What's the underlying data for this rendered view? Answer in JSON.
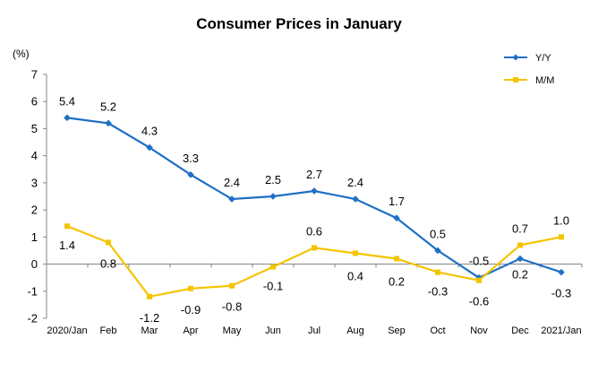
{
  "chart_data": {
    "type": "line",
    "title": "Consumer Prices in January",
    "ylabel": "(%)",
    "ylim": [
      -2,
      7
    ],
    "yticks": [
      "-2",
      "-1",
      "0",
      "1",
      "2",
      "3",
      "4",
      "5",
      "6",
      "7"
    ],
    "categories": [
      "2020/Jan",
      "Feb",
      "Mar",
      "Apr",
      "May",
      "Jun",
      "Jul",
      "Aug",
      "Sep",
      "Oct",
      "Nov",
      "Dec",
      "2021/Jan"
    ],
    "grid": false,
    "legend": "top-right",
    "series": [
      {
        "name": "Y/Y",
        "color": "#1F6FC5",
        "marker": "diamond",
        "values": [
          5.4,
          5.2,
          4.3,
          3.3,
          2.4,
          2.5,
          2.7,
          2.4,
          1.7,
          0.5,
          -0.5,
          0.2,
          -0.3
        ],
        "labels": [
          "5.4",
          "5.2",
          "4.3",
          "3.3",
          "2.4",
          "2.5",
          "2.7",
          "2.4",
          "1.7",
          "0.5",
          "-0.5",
          "0.2",
          "-0.3"
        ]
      },
      {
        "name": "M/M",
        "color": "#F5C400",
        "marker": "square",
        "values": [
          1.4,
          0.8,
          -1.2,
          -0.9,
          -0.8,
          -0.1,
          0.6,
          0.4,
          0.2,
          -0.3,
          -0.6,
          0.7,
          1.0
        ],
        "labels": [
          "1.4",
          "0.8",
          "-1.2",
          "-0.9",
          "-0.8",
          "-0.1",
          "0.6",
          "0.4",
          "0.2",
          "-0.3",
          "-0.6",
          "0.7",
          "1.0"
        ]
      }
    ]
  }
}
